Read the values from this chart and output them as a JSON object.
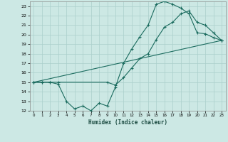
{
  "xlabel": "Humidex (Indice chaleur)",
  "xlim": [
    -0.5,
    23.5
  ],
  "ylim": [
    12,
    23.5
  ],
  "xticks": [
    0,
    1,
    2,
    3,
    4,
    5,
    6,
    7,
    8,
    9,
    10,
    11,
    12,
    13,
    14,
    15,
    16,
    17,
    18,
    19,
    20,
    21,
    22,
    23
  ],
  "yticks": [
    12,
    13,
    14,
    15,
    16,
    17,
    18,
    19,
    20,
    21,
    22,
    23
  ],
  "bg_color": "#cce8e4",
  "grid_color": "#aacfcb",
  "line_color": "#1a6b5e",
  "lines": [
    {
      "x": [
        0,
        1,
        2,
        3,
        4,
        5,
        6,
        7,
        8,
        9,
        10,
        11,
        12,
        13,
        14,
        15,
        16,
        17,
        18,
        19,
        20,
        21,
        22,
        23
      ],
      "y": [
        15,
        15,
        15,
        14.8,
        13,
        12.2,
        12.5,
        12,
        12.8,
        12.5,
        14.5,
        17,
        18.5,
        19.8,
        21,
        23.2,
        23.5,
        23.2,
        22.8,
        22.2,
        20.2,
        20.1,
        19.7,
        19.4
      ]
    },
    {
      "x": [
        0,
        1,
        2,
        3,
        9,
        10,
        11,
        12,
        13,
        14,
        15,
        16,
        17,
        18,
        19,
        20,
        21,
        22,
        23
      ],
      "y": [
        15,
        15,
        15,
        15,
        15,
        14.7,
        15.5,
        16.5,
        17.5,
        18,
        19.5,
        20.8,
        21.3,
        22.2,
        22.5,
        21.3,
        21,
        20.2,
        19.4
      ]
    },
    {
      "x": [
        0,
        23
      ],
      "y": [
        15,
        19.4
      ]
    }
  ]
}
